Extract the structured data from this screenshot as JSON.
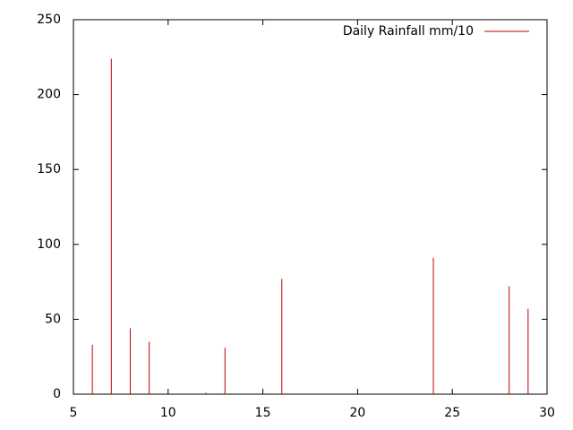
{
  "chart_data": {
    "type": "impulses",
    "x": [
      6,
      7,
      8,
      9,
      12,
      13,
      16,
      24,
      28,
      29
    ],
    "series": [
      {
        "name": "Daily Rainfall mm/10",
        "color": "#c00000",
        "values": [
          33,
          224,
          44,
          35,
          1,
          31,
          77,
          91,
          72,
          57
        ]
      }
    ],
    "xlim": [
      5,
      30
    ],
    "xticks": [
      5,
      10,
      15,
      20,
      25,
      30
    ],
    "ylim": [
      0,
      250
    ],
    "yticks": [
      0,
      50,
      100,
      150,
      200,
      250
    ],
    "grid": false,
    "legend": "top-right"
  }
}
